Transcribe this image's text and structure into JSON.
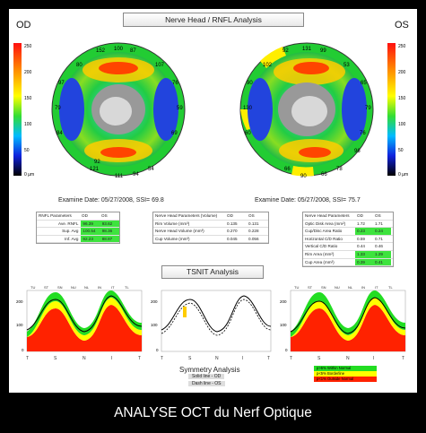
{
  "header": {
    "title": "Nerve Head / RNFL Analysis"
  },
  "eyes": {
    "left_label": "OD",
    "right_label": "OS"
  },
  "colorbar": {
    "ticks": [
      "250",
      "200",
      "150",
      "100",
      "50",
      "0 µm"
    ]
  },
  "od_map": {
    "sectors": [
      "ST",
      "S",
      "SN",
      "NU",
      "N",
      "NL",
      "IN",
      "I",
      "IT",
      "TL",
      "T",
      "TU"
    ],
    "values": [
      "152",
      "100",
      "87",
      "76",
      "59",
      "69",
      "54",
      "94",
      "111",
      "121",
      "84",
      "79",
      "97",
      "92",
      "80",
      "107"
    ],
    "exam": "Examine Date: 05/27/2008, SSI= 69.8"
  },
  "os_map": {
    "values": [
      "92",
      "131",
      "99",
      "65",
      "79",
      "76",
      "78",
      "66",
      "66",
      "60",
      "90",
      "130",
      "90",
      "53",
      "102",
      "96"
    ],
    "exam": "Examine Date: 05/27/2008, SSI= 75.7"
  },
  "rnfl_table": {
    "headers": [
      "RNFL Parameters",
      "OD",
      "OS"
    ],
    "rows": [
      [
        "Ave. RNFL",
        "96.39",
        "93.62"
      ],
      [
        "Sup. Avg",
        "100.54",
        "98.36"
      ],
      [
        "Inf. Avg",
        "92.23",
        "88.87"
      ]
    ]
  },
  "volume_table": {
    "headers": [
      "Nerve Head Parameters (Volume)",
      "OD",
      "OS"
    ],
    "rows": [
      [
        "Rim Volume (mm³)",
        "0.135",
        "0.131"
      ],
      [
        "Nerve Head Volume (mm³)",
        "0.270",
        "0.228"
      ],
      [
        "Cup Volume (mm³)",
        "0.045",
        "0.056"
      ]
    ]
  },
  "area_table": {
    "headers": [
      "Nerve Head Parameters",
      "OD",
      "OS"
    ],
    "rows": [
      [
        "Optic Disk Area (mm²)",
        "1.72",
        "1.71"
      ],
      [
        "Cup/Disc Area Ratio",
        "0.23",
        "0.24"
      ],
      [
        "Horizontal C/D Ratio",
        "0.59",
        "0.71"
      ],
      [
        "Vertical C/D Ratio",
        "0.44",
        "0.46"
      ],
      [
        "Rim Area (mm²)",
        "1.33",
        "1.29"
      ],
      [
        "Cup Area (mm²)",
        "0.39",
        "0.41"
      ]
    ]
  },
  "tsnit": {
    "title": "TSNIT Analysis",
    "top_labels": [
      "TU",
      "ST",
      "SN",
      "NU",
      "NL",
      "IN",
      "IT",
      "TL"
    ],
    "bottom_labels": [
      "T",
      "S",
      "N",
      "I",
      "T"
    ],
    "y_ticks": [
      "200",
      "100",
      "0"
    ]
  },
  "symmetry": {
    "title": "Symmetry Analysis",
    "solid": "Solid line - OD",
    "dash": "Dash line - OS"
  },
  "legend": {
    "items": [
      "p>5% Within Normal",
      "p<5% Borderline",
      "p<1% Outside Normal"
    ],
    "colors": [
      "#22dd22",
      "#ffff00",
      "#ff2200"
    ]
  },
  "caption": "ANALYSE OCT du Nerf Optique"
}
